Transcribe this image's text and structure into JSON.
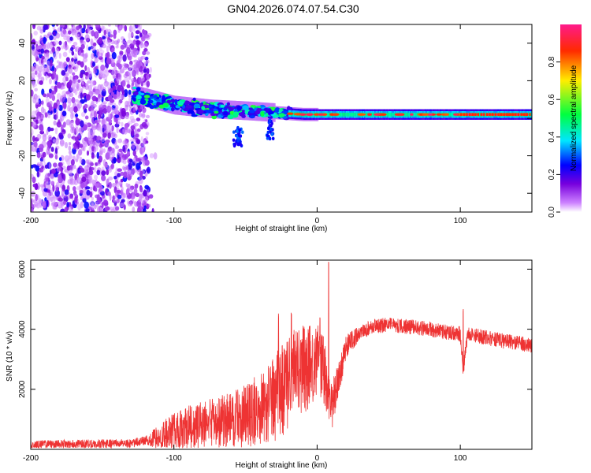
{
  "title": "GN04.2026.074.07.54.C30",
  "colormap_colors": [
    "#ffffff",
    "#cc80ff",
    "#7700dd",
    "#0000ff",
    "#00e6ff",
    "#00ff40",
    "#ffee00",
    "#ff2a00",
    "#ff1a8c"
  ],
  "chart_data": [
    {
      "type": "heatmap",
      "name": "spectrogram",
      "xlabel": "Height of straight line (km)",
      "ylabel": "Frequency (Hz)",
      "xlim": [
        -200,
        150
      ],
      "ylim": [
        -50,
        50
      ],
      "xticks": [
        -200,
        -100,
        0,
        100
      ],
      "xtick_labels": [
        "-200",
        "-100",
        "0",
        "100"
      ],
      "yticks": [
        -40,
        -20,
        0,
        20,
        40
      ],
      "ytick_labels": [
        "-40",
        "-20",
        "0",
        "20",
        "40"
      ],
      "colorbar": {
        "label": "Normalized spectral amplitude",
        "range": [
          0,
          1
        ],
        "ticks": [
          0,
          0.2,
          0.4,
          0.6,
          0.8
        ],
        "tick_labels": [
          "0.0",
          "0.2",
          "0.4",
          "0.6",
          "0.8"
        ]
      },
      "features": {
        "noise_region_x": [
          -200,
          -118
        ],
        "signal_band": [
          {
            "x": -125,
            "f": 12
          },
          {
            "x": -100,
            "f": 7
          },
          {
            "x": -75,
            "f": 5
          },
          {
            "x": -50,
            "f": 4
          },
          {
            "x": -30,
            "f": 3
          },
          {
            "x": -10,
            "f": 2
          },
          {
            "x": 10,
            "f": 2
          },
          {
            "x": 150,
            "f": 2
          }
        ],
        "strong_band_x": [
          -20,
          150
        ]
      }
    },
    {
      "type": "line",
      "name": "snr",
      "color": "#ee3333",
      "xlabel": "Height of straight line (km)",
      "ylabel": "SNR (10 * v/v)",
      "xlim": [
        -200,
        150
      ],
      "ylim": [
        0,
        6300
      ],
      "xticks": [
        -200,
        -100,
        0,
        100
      ],
      "xtick_labels": [
        "-200",
        "-100",
        "0",
        "100"
      ],
      "yticks": [
        2000,
        4000,
        6000
      ],
      "ytick_labels": [
        "2000",
        "4000",
        "6000"
      ],
      "envelope": {
        "x": [
          -200,
          -130,
          -110,
          -90,
          -70,
          -50,
          -35,
          -25,
          -15,
          -5,
          0,
          5,
          8,
          10,
          15,
          20,
          30,
          40,
          50,
          60,
          70,
          80,
          90,
          100,
          102,
          105,
          110,
          120,
          130,
          140,
          150
        ],
        "y": [
          150,
          200,
          400,
          700,
          900,
          1100,
          1500,
          1900,
          2500,
          2800,
          3000,
          2600,
          2000,
          1500,
          2200,
          3400,
          3900,
          4100,
          4150,
          4100,
          4050,
          4000,
          3900,
          3850,
          2600,
          3850,
          3800,
          3700,
          3600,
          3550,
          3450
        ]
      },
      "noise_amplitude": {
        "x": [
          -200,
          -120,
          -100,
          -60,
          -40,
          -25,
          -10,
          0,
          10,
          20,
          30,
          150
        ],
        "y": [
          150,
          150,
          700,
          900,
          1200,
          1600,
          1500,
          1300,
          900,
          400,
          250,
          250
        ]
      },
      "spikes": [
        {
          "x": -27,
          "y": 4550
        },
        {
          "x": -18,
          "y": 4600
        },
        {
          "x": -5,
          "y": 4200
        },
        {
          "x": 2,
          "y": 4500
        },
        {
          "x": 8,
          "y": 6300
        },
        {
          "x": 102,
          "y": 4700
        }
      ]
    }
  ]
}
